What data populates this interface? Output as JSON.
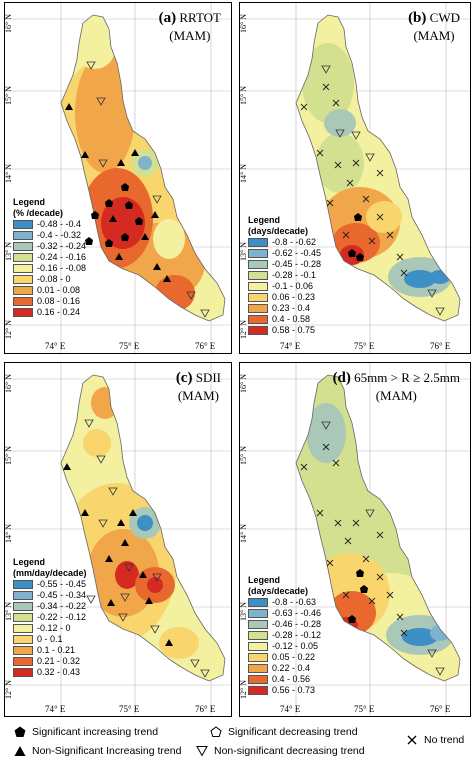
{
  "panels": [
    {
      "id": "a",
      "label": "(a)",
      "index": "RRTOT",
      "season": "(MAM)",
      "legend_title": "Legend",
      "legend_unit": "(% /decade)",
      "classes": [
        "-0.48 - -0.4",
        "-0.4 - -0.32",
        "-0.32 - -0.24",
        "-0.24 - -0.16",
        "-0.16 - -0.08",
        "-0.08 - 0",
        "0.01 - 0.08",
        "0.08 - 0.16",
        "0.16 - 0.24"
      ],
      "colors": [
        "#3d8fc6",
        "#7fb2cf",
        "#a9c8b8",
        "#d2e08f",
        "#f3f0a0",
        "#f9d56e",
        "#f1a64a",
        "#e8682e",
        "#d42a22"
      ],
      "xticks": [
        "74° E",
        "75° E",
        "76° E"
      ],
      "yticks": [
        "16° N",
        "15° N",
        "14° N",
        "13° N",
        "12° N"
      ]
    },
    {
      "id": "b",
      "label": "(b)",
      "index": "CWD",
      "season": "(MAM)",
      "legend_title": "Legend",
      "legend_unit": "(days/decade)",
      "classes": [
        "-0.8 - -0.62",
        "-0.62 - -0.45",
        "-0.45 - -0.28",
        "-0.28 - -0.1",
        "-0.1 - 0.06",
        "0.06 - 0.23",
        "0.23 - 0.4",
        "0.4 - 0.58",
        "0.58 - 0.75"
      ],
      "colors": [
        "#3d8fc6",
        "#7fb2cf",
        "#a9c8b8",
        "#d2e08f",
        "#f3f0a0",
        "#f9d56e",
        "#f1a64a",
        "#e8682e",
        "#d42a22"
      ],
      "xticks": [
        "74° E",
        "75° E",
        "76° E"
      ],
      "yticks": [
        "16° N",
        "15° N",
        "14° N",
        "13° N",
        "12° N"
      ]
    },
    {
      "id": "c",
      "label": "(c)",
      "index": "SDII",
      "season": "(MAM)",
      "legend_title": "Legend",
      "legend_unit": "(mm/day/decade)",
      "classes": [
        "-0.55 - -0.45",
        "-0.45 - -0.34",
        "-0.34 - -0.22",
        "-0.22 - -0.12",
        "-0.12 - 0",
        "0 - 0.1",
        "0.1 - 0.21",
        "0.21 - 0.32",
        "0.32 - 0.43"
      ],
      "colors": [
        "#3d8fc6",
        "#7fb2cf",
        "#a9c8b8",
        "#d2e08f",
        "#f3f0a0",
        "#f9d56e",
        "#f1a64a",
        "#e8682e",
        "#d42a22"
      ],
      "xticks": [
        "74° E",
        "75° E",
        "76° E"
      ],
      "yticks": [
        "16° N",
        "15° N",
        "14° N",
        "13° N",
        "12° N"
      ]
    },
    {
      "id": "d",
      "label": "(d)",
      "index": "65mm > R ≥ 2.5mm",
      "season": "(MAM)",
      "legend_title": "Legend",
      "legend_unit": "(days/decade)",
      "classes": [
        "-0.8 - -0.63",
        "-0.63 - -0.46",
        "-0.46 - -0.28",
        "-0.28 - -0.12",
        "-0.12 - 0.05",
        "0.05 - 0.22",
        "0.22 - 0.4",
        "0.4 - 0.56",
        "0.56 - 0.73"
      ],
      "colors": [
        "#3d8fc6",
        "#7fb2cf",
        "#a9c8b8",
        "#d2e08f",
        "#f3f0a0",
        "#f9d56e",
        "#f1a64a",
        "#e8682e",
        "#d42a22"
      ],
      "xticks": [
        "74° E",
        "75° E",
        "76° E"
      ],
      "yticks": [
        "16° N",
        "15° N",
        "14° N",
        "13° N",
        "12° N"
      ]
    }
  ],
  "key": {
    "sig_inc": "Significant increasing trend",
    "sig_dec": "Significant decreasing trend",
    "no_trend": "No trend",
    "nonsig_inc": "Non-Significant Increasing trend",
    "nonsig_dec": "Non-significant decreasing trend"
  },
  "symbols": {
    "sig_inc": "pentagon-filled-icon",
    "sig_dec": "pentagon-outline-icon",
    "nonsig_inc": "triangle-filled-icon",
    "nonsig_dec": "triangle-outline-icon",
    "no_trend": "cross-icon"
  }
}
